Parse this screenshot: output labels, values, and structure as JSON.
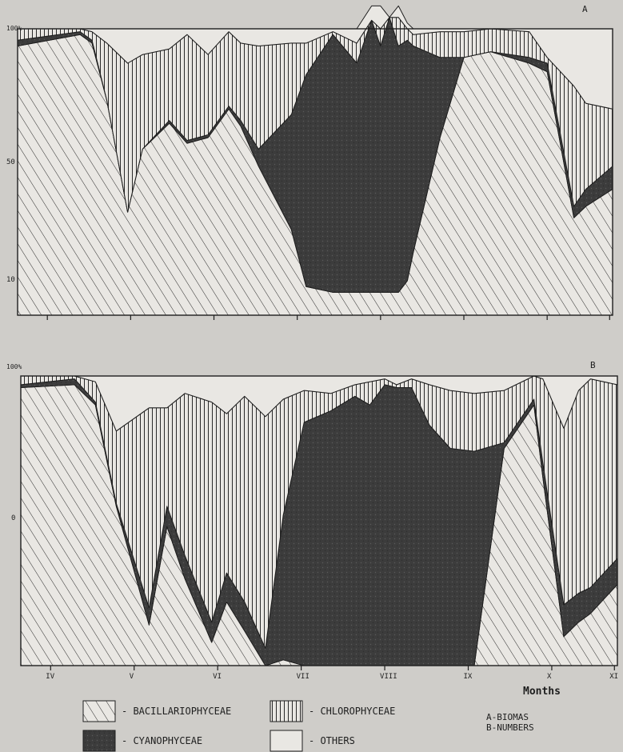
{
  "chart_data": [
    {
      "panel": "A",
      "type": "area",
      "stacking": "percent",
      "title": "A",
      "ytick_labels": [
        "100%",
        "50",
        "10"
      ],
      "xtick_labels": [
        "IV",
        "V",
        "VI",
        "VII",
        "VIII",
        "IX",
        "X",
        "XI"
      ],
      "x": [
        0,
        1.05,
        1.25,
        1.5,
        1.85,
        2.1,
        2.55,
        2.85,
        3.2,
        3.55,
        3.75,
        4.05,
        4.6,
        4.85,
        5.3,
        5.7,
        5.95,
        6.1,
        6.25,
        6.4,
        6.55,
        6.65,
        7.1,
        7.5,
        7.95,
        8.6,
        8.9,
        9.35,
        9.55,
        10
      ],
      "series": [
        {
          "name": "BACILLARIOPHYCEAE",
          "pattern": "diagonal",
          "values": [
            94,
            98,
            95,
            75,
            36,
            58,
            67,
            60,
            62,
            72,
            66,
            52,
            30,
            10,
            8,
            8,
            8,
            8,
            8,
            8,
            12,
            22,
            62,
            90,
            92,
            88,
            85,
            34,
            38,
            44
          ]
        },
        {
          "name": "CYANOPHYCEAE",
          "pattern": "solid",
          "values": [
            2,
            1,
            1,
            0,
            0,
            0,
            1,
            1,
            1,
            1,
            2,
            6,
            40,
            74,
            90,
            80,
            95,
            86,
            96,
            86,
            84,
            72,
            28,
            0,
            0,
            2,
            3,
            4,
            6,
            8
          ]
        },
        {
          "name": "CHLOROPHYCEAE",
          "pattern": "vertical",
          "values": [
            4,
            1,
            3,
            20,
            52,
            33,
            25,
            37,
            28,
            26,
            27,
            36,
            25,
            11,
            1,
            7,
            0,
            6,
            0,
            10,
            4,
            4,
            9,
            9,
            8,
            9,
            2,
            42,
            30,
            20
          ]
        },
        {
          "name": "OTHERS",
          "pattern": "blank",
          "values": [
            0,
            0,
            1,
            5,
            12,
            9,
            7,
            2,
            9,
            1,
            5,
            6,
            5,
            5,
            1,
            5,
            5,
            8,
            0,
            4,
            2,
            2,
            1,
            1,
            0,
            1,
            10,
            20,
            26,
            28
          ]
        }
      ]
    },
    {
      "panel": "B",
      "type": "area",
      "stacking": "percent",
      "title": "B",
      "ytick_labels": [
        "100%",
        "0"
      ],
      "xtick_labels": [
        "IV",
        "V",
        "VI",
        "VII",
        "VIII",
        "IX",
        "X",
        "XI"
      ],
      "x": [
        0,
        0.9,
        1.25,
        1.6,
        2.15,
        2.45,
        2.75,
        3.2,
        3.45,
        3.75,
        4.1,
        4.4,
        4.75,
        5.2,
        5.6,
        5.85,
        6.1,
        6.3,
        6.55,
        6.85,
        7.2,
        7.6,
        8.1,
        8.6,
        8.75,
        9.1,
        9.35,
        9.55,
        10
      ],
      "series": [
        {
          "name": "BACILLARIOPHYCEAE",
          "pattern": "diagonal",
          "values": [
            96,
            97,
            90,
            55,
            14,
            48,
            30,
            8,
            22,
            12,
            0,
            2,
            0,
            0,
            0,
            0,
            0,
            0,
            0,
            0,
            0,
            0,
            75,
            90,
            65,
            10,
            15,
            18,
            28
          ]
        },
        {
          "name": "CYANOPHYCEAE",
          "pattern": "solid",
          "values": [
            1,
            2,
            1,
            1,
            6,
            7,
            8,
            7,
            10,
            10,
            6,
            50,
            84,
            88,
            93,
            90,
            97,
            96,
            96,
            83,
            75,
            74,
            2,
            2,
            5,
            11,
            10,
            9,
            9
          ]
        },
        {
          "name": "CHLOROPHYCEAE",
          "pattern": "vertical",
          "values": [
            3,
            1,
            7,
            25,
            69,
            34,
            56,
            76,
            55,
            71,
            80,
            40,
            11,
            6,
            4,
            8,
            2,
            1,
            3,
            14,
            20,
            20,
            18,
            8,
            29,
            61,
            70,
            72,
            60
          ]
        },
        {
          "name": "OTHERS",
          "pattern": "blank",
          "values": [
            0,
            0,
            2,
            19,
            11,
            11,
            6,
            9,
            13,
            7,
            14,
            8,
            5,
            6,
            3,
            2,
            1,
            3,
            1,
            3,
            5,
            6,
            5,
            0,
            1,
            18,
            5,
            1,
            3
          ]
        }
      ]
    }
  ],
  "axis": {
    "xlabel": "Months"
  },
  "legend": {
    "items": [
      {
        "label": "- BACILLARIOPHYCEAE",
        "pattern": "diagonal"
      },
      {
        "label": "- CHLOROPHYCEAE",
        "pattern": "vertical"
      },
      {
        "label": "- CYANOPHYCEAE",
        "pattern": "solid"
      },
      {
        "label": "- OTHERS",
        "pattern": "blank"
      }
    ],
    "notes": [
      "A-BIOMAS",
      "B-NUMBERS"
    ]
  },
  "colors": {
    "background": "#cfcdc9",
    "ink": "#1e1e1e",
    "dark": "#3a3a3a",
    "paper": "#e9e7e3"
  }
}
